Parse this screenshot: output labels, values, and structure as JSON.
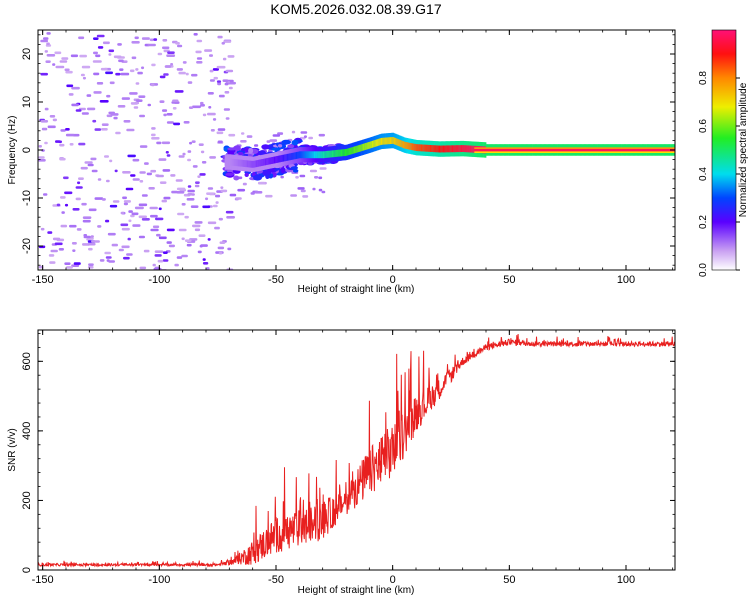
{
  "title": "KOM5.2026.032.08.39.G17",
  "chart_data": [
    {
      "type": "heatmap",
      "panel": "spectrogram",
      "xlabel": "Height of straight line (km)",
      "ylabel": "Frequency (Hz)",
      "xlim": [
        -152,
        121
      ],
      "ylim": [
        -25,
        25
      ],
      "xticks": [
        -150,
        -100,
        -50,
        0,
        50,
        100
      ],
      "yticks": [
        -20,
        -10,
        0,
        10,
        20
      ],
      "colorbar": {
        "label": "Normalized spectral amplitude",
        "range": [
          0,
          1
        ],
        "ticks": [
          0.0,
          0.2,
          0.4,
          0.6,
          0.8
        ]
      },
      "signal_ridge": {
        "x": [
          -70,
          -60,
          -50,
          -40,
          -30,
          -20,
          -10,
          -5,
          0,
          5,
          10,
          20,
          30,
          40,
          121
        ],
        "freq": [
          -2.5,
          -3.0,
          -2.0,
          -1.0,
          -1.0,
          -0.5,
          1.0,
          1.8,
          2.0,
          1.0,
          0.5,
          0.2,
          0.3,
          0.0,
          0.0
        ],
        "amplitude": [
          0.1,
          0.15,
          0.2,
          0.3,
          0.45,
          0.55,
          0.65,
          0.7,
          0.72,
          0.78,
          0.85,
          0.9,
          0.95,
          1.0,
          1.0
        ]
      },
      "noise_region_x": [
        -152,
        -70
      ]
    },
    {
      "type": "line",
      "panel": "snr",
      "xlabel": "Height of straight line (km)",
      "ylabel": "SNR (v/v)",
      "xlim": [
        -152,
        121
      ],
      "ylim": [
        0,
        690
      ],
      "xticks": [
        -150,
        -100,
        -50,
        0,
        50,
        100
      ],
      "yticks": [
        0,
        200,
        400,
        600
      ],
      "series": [
        {
          "name": "SNR",
          "color": "#e8201f",
          "envelope_x": [
            -152,
            -75,
            -68,
            -60,
            -50,
            -40,
            -30,
            -20,
            -10,
            0,
            10,
            20,
            30,
            40,
            50,
            60,
            121
          ],
          "envelope_y": [
            15,
            15,
            25,
            50,
            100,
            120,
            140,
            200,
            280,
            340,
            450,
            520,
            600,
            640,
            655,
            650,
            650
          ],
          "noise_amp": [
            6,
            6,
            15,
            60,
            90,
            90,
            90,
            70,
            120,
            140,
            90,
            50,
            20,
            15,
            15,
            12,
            12
          ]
        }
      ]
    }
  ]
}
